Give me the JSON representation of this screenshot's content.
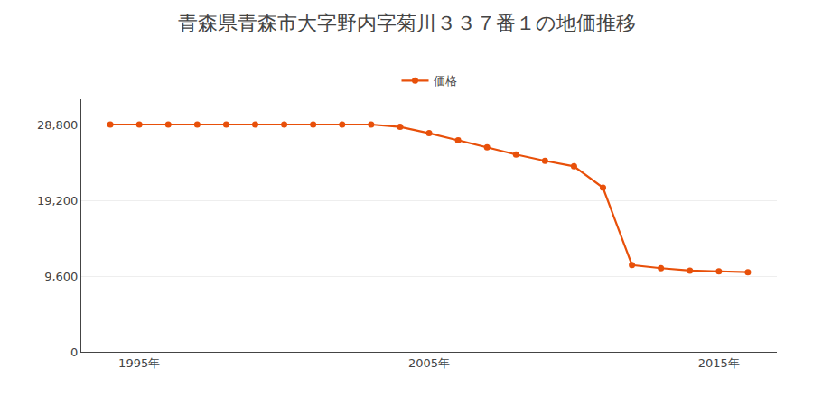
{
  "chart_data": {
    "type": "line",
    "title": "青森県青森市大字野内字菊川３３７番１の地価推移",
    "x": [
      1994,
      1995,
      1996,
      1997,
      1998,
      1999,
      2000,
      2001,
      2002,
      2003,
      2004,
      2005,
      2006,
      2007,
      2008,
      2009,
      2010,
      2011,
      2012,
      2013,
      2014,
      2015,
      2016
    ],
    "series": [
      {
        "name": "価格",
        "color": "#e8500a",
        "values": [
          28800,
          28800,
          28800,
          28800,
          28800,
          28800,
          28800,
          28800,
          28800,
          28800,
          28500,
          27700,
          26800,
          25900,
          25000,
          24200,
          23500,
          20800,
          11000,
          10600,
          10300,
          10200,
          10100
        ]
      }
    ],
    "xlim": [
      1993,
      2017
    ],
    "xticks": [
      {
        "value": 1995,
        "label": "1995年"
      },
      {
        "value": 2005,
        "label": "2005年"
      },
      {
        "value": 2015,
        "label": "2015年"
      }
    ],
    "ylim": [
      0,
      32000
    ],
    "yticks": [
      0,
      {
        "value": 9600,
        "label": "9,600"
      },
      {
        "value": 19200,
        "label": "19,200"
      },
      {
        "value": 28800,
        "label": "28,800"
      }
    ],
    "grid": true,
    "legend": "top",
    "marker": "circle",
    "line_style": "solid"
  }
}
